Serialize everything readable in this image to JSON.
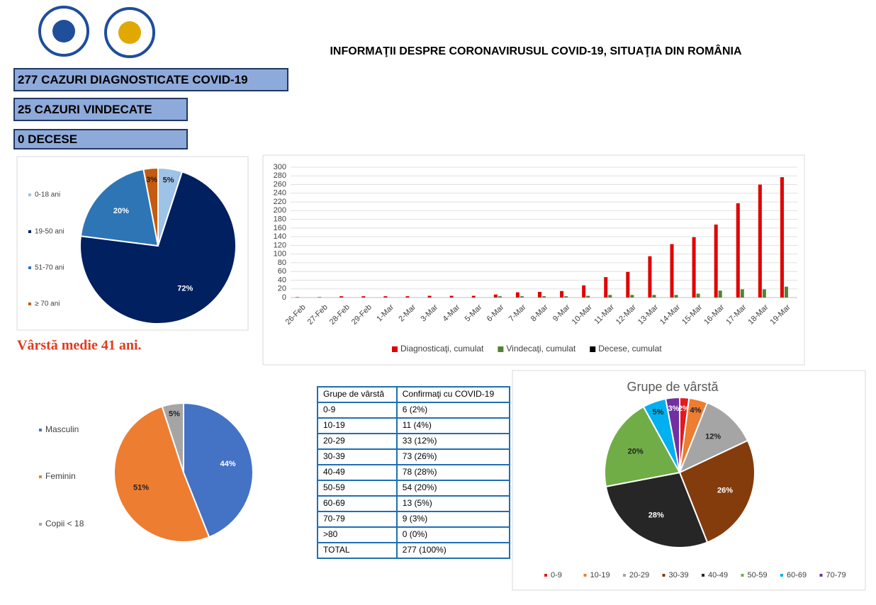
{
  "header": {
    "title": "INFORMAŢII DESPRE CORONAVIRUSUL COVID-19, SITUAŢIA DIN ROMÂNIA"
  },
  "stats": [
    "277 CAZURI DIAGNOSTICATE COVID-19",
    "25 CAZURI VINDECATE",
    "0 DECESE"
  ],
  "note": "Vârstă medie 41 ani.",
  "table": {
    "header": [
      "Grupe de vârstă",
      "Confirmaţi cu COVID-19"
    ],
    "rows": [
      [
        "0-9",
        "6 (2%)"
      ],
      [
        "10-19",
        "11 (4%)"
      ],
      [
        "20-29",
        "33 (12%)"
      ],
      [
        "30-39",
        "73 (26%)"
      ],
      [
        "40-49",
        "78 (28%)"
      ],
      [
        "50-59",
        "54 (20%)"
      ],
      [
        "60-69",
        "13 (5%)"
      ],
      [
        "70-79",
        "9 (3%)"
      ],
      [
        ">80",
        "0 (0%)"
      ],
      [
        "TOTAL",
        "277 (100%)"
      ]
    ]
  },
  "chart_data": [
    {
      "type": "pie",
      "categories": [
        "0-18 ani",
        "19-50 ani",
        "51-70 ani",
        "≥ 70 ani"
      ],
      "values": [
        5,
        72,
        20,
        3
      ],
      "value_labels": [
        "5%",
        "72%",
        "20%",
        "3%"
      ],
      "colors": [
        "#9dc3e6",
        "#002060",
        "#2e75b6",
        "#c55a11"
      ],
      "legend": "left"
    },
    {
      "type": "bar",
      "categories": [
        "26-Feb",
        "27-Feb",
        "28-Feb",
        "29-Feb",
        "1-Mar",
        "2-Mar",
        "3-Mar",
        "4-Mar",
        "5-Mar",
        "6-Mar",
        "7-Mar",
        "8-Mar",
        "9-Mar",
        "10-Mar",
        "11-Mar",
        "12-Mar",
        "13-Mar",
        "14-Mar",
        "15-Mar",
        "16-Mar",
        "17-Mar",
        "18-Mar",
        "19-Mar"
      ],
      "series": [
        {
          "name": "Diagnosticaţi, cumulat",
          "color": "#e00000",
          "values": [
            1,
            1,
            3,
            3,
            3,
            3,
            4,
            4,
            4,
            7,
            12,
            13,
            15,
            28,
            47,
            59,
            95,
            123,
            139,
            168,
            217,
            260,
            277
          ]
        },
        {
          "name": "Vindecaţi, cumulat",
          "color": "#548235",
          "values": [
            0,
            0,
            0,
            0,
            0,
            0,
            0,
            0,
            0,
            3,
            3,
            3,
            3,
            4,
            6,
            6,
            6,
            6,
            9,
            16,
            19,
            19,
            25
          ]
        },
        {
          "name": "Decese, cumulat",
          "color": "#000000",
          "values": [
            0,
            0,
            0,
            0,
            0,
            0,
            0,
            0,
            0,
            0,
            0,
            0,
            0,
            0,
            0,
            0,
            0,
            0,
            0,
            0,
            0,
            0,
            0
          ]
        }
      ],
      "ylim": [
        0,
        300
      ],
      "yticks": [
        0,
        20,
        40,
        60,
        80,
        100,
        120,
        140,
        160,
        180,
        200,
        220,
        240,
        260,
        280,
        300
      ],
      "grid": true,
      "legend": "bottom"
    },
    {
      "type": "pie",
      "categories": [
        "Masculin",
        "Feminin",
        "Copii < 18"
      ],
      "values": [
        44,
        51,
        5
      ],
      "value_labels": [
        "44%",
        "51%",
        "5%"
      ],
      "colors": [
        "#4472c4",
        "#ed7d31",
        "#a5a5a5"
      ],
      "legend": "left"
    },
    {
      "type": "pie",
      "title": "Grupe de vârstă",
      "categories": [
        "0-9",
        "10-19",
        "20-29",
        "30-39",
        "40-49",
        "50-59",
        "60-69",
        "70-79"
      ],
      "values": [
        2,
        4,
        12,
        26,
        28,
        20,
        5,
        3
      ],
      "value_labels": [
        "2%",
        "4%",
        "12%",
        "26%",
        "28%",
        "20%",
        "5%",
        "3%"
      ],
      "colors": [
        "#e31a1c",
        "#ed7d31",
        "#a5a5a5",
        "#843c0c",
        "#262626",
        "#70ad47",
        "#00b0f0",
        "#7030a0"
      ],
      "legend": "bottom"
    }
  ]
}
